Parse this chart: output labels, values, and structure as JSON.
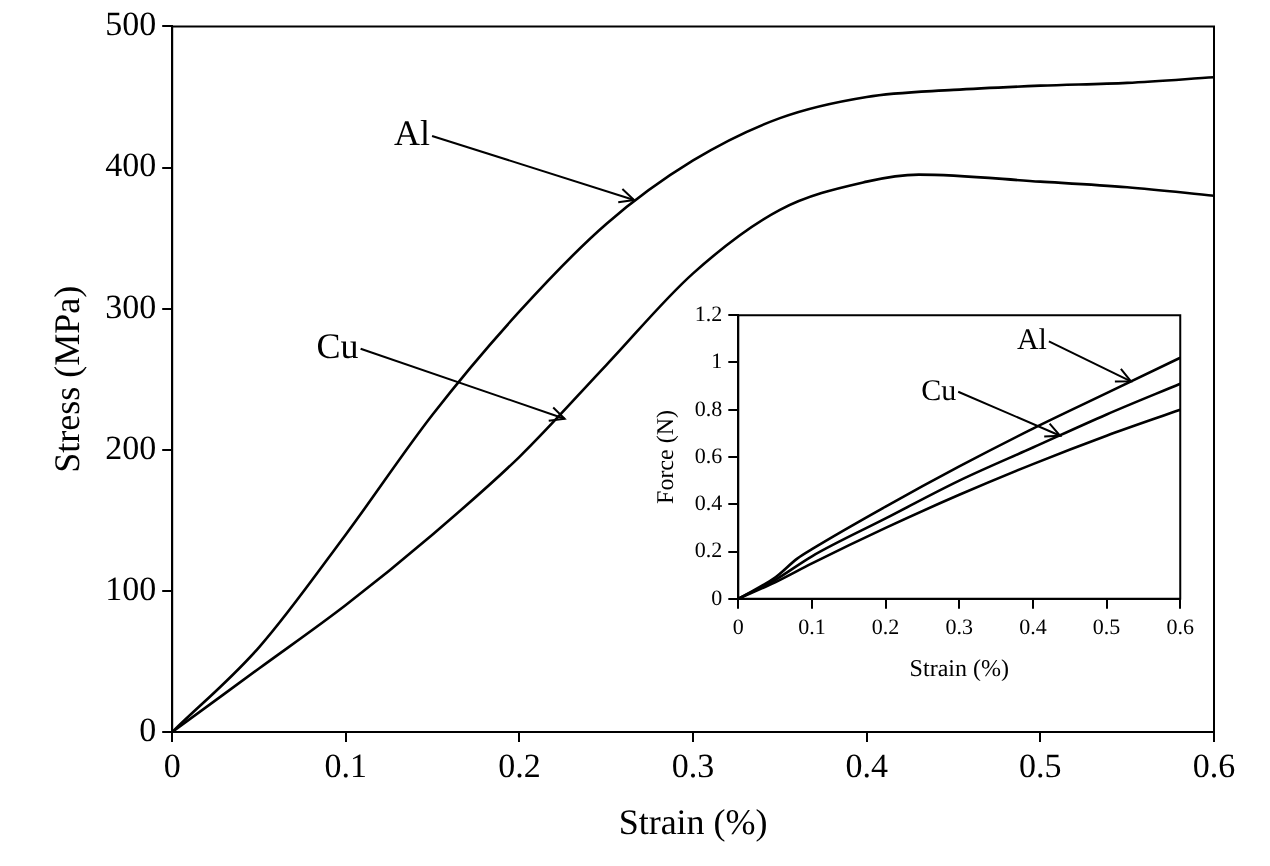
{
  "chart_data": [
    {
      "type": "line",
      "xlabel": "Strain (%)",
      "ylabel": "Stress (MPa)",
      "xlim": [
        0,
        0.6
      ],
      "ylim": [
        0,
        500
      ],
      "xticks": [
        0,
        0.1,
        0.2,
        0.3,
        0.4,
        0.5,
        0.6
      ],
      "yticks": [
        0,
        100,
        200,
        300,
        400,
        500
      ],
      "series": [
        {
          "color": "#000000",
          "x": [
            0,
            0.05,
            0.1,
            0.15,
            0.2,
            0.25,
            0.3,
            0.35,
            0.4,
            0.45,
            0.5,
            0.55,
            0.6
          ],
          "values": [
            0,
            60,
            140,
            225,
            298,
            360,
            405,
            435,
            450,
            455,
            458,
            460,
            464
          ]
        },
        {
          "color": "#000000",
          "x": [
            0,
            0.05,
            0.1,
            0.15,
            0.2,
            0.25,
            0.3,
            0.35,
            0.4,
            0.43,
            0.5,
            0.55,
            0.6
          ],
          "values": [
            0,
            45,
            90,
            140,
            195,
            260,
            325,
            370,
            390,
            395,
            390,
            386,
            380
          ]
        }
      ],
      "annotations": [
        {
          "text": "Al",
          "x": 0.266,
          "y": 377
        },
        {
          "text": "Cu",
          "x": 0.226,
          "y": 222
        }
      ]
    },
    {
      "type": "line",
      "xlabel": "Strain (%)",
      "ylabel": "Force (N)",
      "xlim": [
        0,
        0.6
      ],
      "ylim": [
        0,
        1.2
      ],
      "xticks": [
        0,
        0.1,
        0.2,
        0.3,
        0.4,
        0.5,
        0.6
      ],
      "yticks": [
        0,
        0.2,
        0.4,
        0.6,
        0.8,
        1,
        1.2
      ],
      "series": [
        {
          "color": "#000000",
          "x": [
            0,
            0.05,
            0.08,
            0.1,
            0.2,
            0.3,
            0.4,
            0.5,
            0.6
          ],
          "values": [
            0,
            0.09,
            0.17,
            0.21,
            0.39,
            0.56,
            0.72,
            0.87,
            1.02
          ]
        },
        {
          "color": "#000000",
          "x": [
            0,
            0.05,
            0.1,
            0.2,
            0.3,
            0.4,
            0.5,
            0.6
          ],
          "values": [
            0,
            0.08,
            0.18,
            0.34,
            0.5,
            0.64,
            0.78,
            0.91
          ]
        },
        {
          "color": "#000000",
          "x": [
            0,
            0.05,
            0.1,
            0.2,
            0.3,
            0.4,
            0.5,
            0.6
          ],
          "values": [
            0,
            0.07,
            0.15,
            0.3,
            0.44,
            0.57,
            0.69,
            0.8
          ]
        }
      ],
      "annotations": [
        {
          "text": "Al",
          "x": 0.533,
          "y": 0.92
        },
        {
          "text": "Cu",
          "x": 0.437,
          "y": 0.69
        }
      ]
    }
  ]
}
